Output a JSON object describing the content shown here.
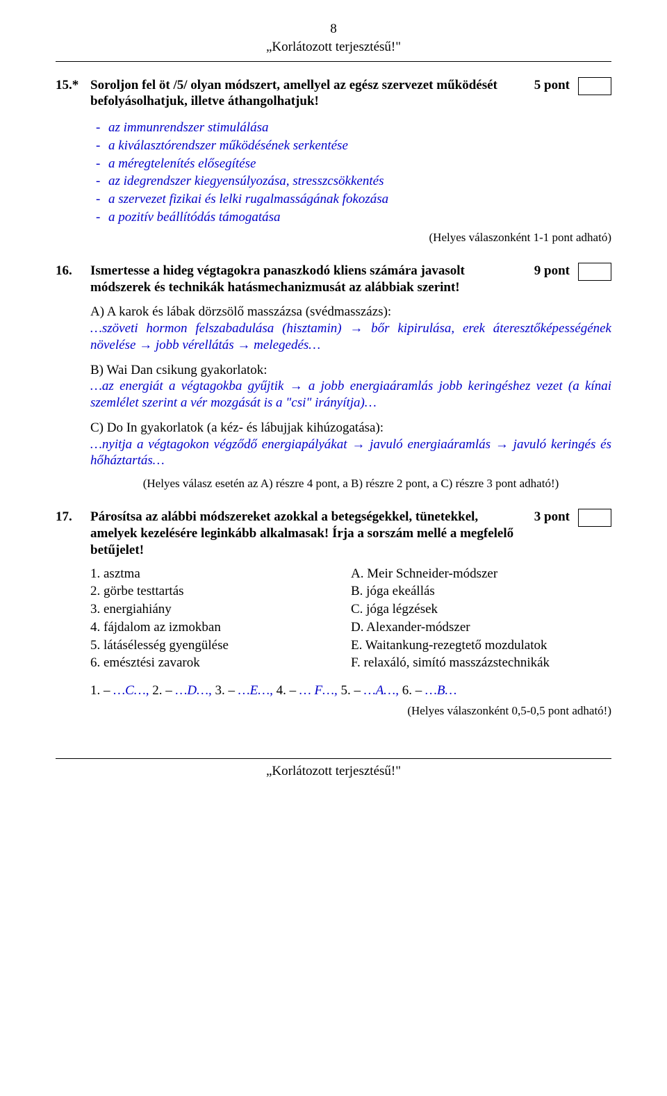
{
  "page_number": "8",
  "classification": "„Korlátozott terjesztésű!\"",
  "q15": {
    "number": "15.*",
    "title": "Soroljon fel öt /5/ olyan módszert, amellyel az egész szervezet működését befolyásolhatjuk, illetve áthangolhatjuk!",
    "points": "5 pont",
    "answers": [
      "az immunrendszer stimulálása",
      "a kiválasztórendszer működésének serkentése",
      "a méregtelenítés elősegítése",
      "az idegrendszer kiegyensúlyozása, stresszcsökkentés",
      "a szervezet fizikai és lelki rugalmasságának fokozása",
      "a pozitív beállítódás támogatása"
    ],
    "scoring": "(Helyes válaszonként 1-1 pont adható)"
  },
  "q16": {
    "number": "16.",
    "title": "Ismertesse a hideg végtagokra panaszkodó kliens számára javasolt módszerek és technikák hatásmechanizmusát az alábbiak szerint!",
    "points": "9 pont",
    "a_title": "A) A karok és lábak dörzsölő masszázsa (svédmasszázs):",
    "a_answer": "…szöveti hormon felszabadulása (hisztamin) → bőr kipirulása, erek áteresztőképességének növelése → jobb vérellátás → melegedés…",
    "b_title": "B) Wai Dan csikung gyakorlatok:",
    "b_answer": "…az energiát a végtagokba gyűjtik → a jobb energiaáramlás jobb keringéshez vezet (a kínai szemlélet szerint a vér mozgását is a \"csi\" irányítja)…",
    "c_title": "C) Do In gyakorlatok (a kéz- és lábujjak kihúzogatása):",
    "c_answer": "…nyitja a végtagokon végződő energiapályákat → javuló energiaáramlás → javuló keringés és hőháztartás…",
    "scoring": "(Helyes válasz esetén az A) részre 4 pont, a B) részre 2 pont, a C) részre 3 pont adható!)"
  },
  "q17": {
    "number": "17.",
    "title": "Párosítsa az alábbi módszereket azokkal a betegségekkel, tünetekkel, amelyek kezelésére leginkább alkalmasak! Írja a sorszám mellé a megfelelő betűjelet!",
    "points": "3 pont",
    "left": [
      "1. asztma",
      "2. görbe testtartás",
      "3. energiahiány",
      "4. fájdalom az izmokban",
      "5. látásélesség gyengülése",
      "6. emésztési zavarok"
    ],
    "right": [
      "A. Meir Schneider-módszer",
      "B. jóga ekeállás",
      "C. jóga légzések",
      "D. Alexander-módszer",
      "E. Waitankung-rezegtető mozdulatok",
      "F. relaxáló, simító masszázstechnikák"
    ],
    "answer_prefix_1": "1. – ",
    "answer_1": "…C…,",
    "answer_prefix_2": " 2. – ",
    "answer_2": "…D…,",
    "answer_prefix_3": " 3. – ",
    "answer_3": "…E…,",
    "answer_prefix_4": " 4. – ",
    "answer_4": "… F…,",
    "answer_prefix_5": " 5. – ",
    "answer_5": "…A…,",
    "answer_prefix_6": " 6. – ",
    "answer_6": "…B…",
    "scoring": "(Helyes válaszonként 0,5-0,5 pont adható!)"
  }
}
